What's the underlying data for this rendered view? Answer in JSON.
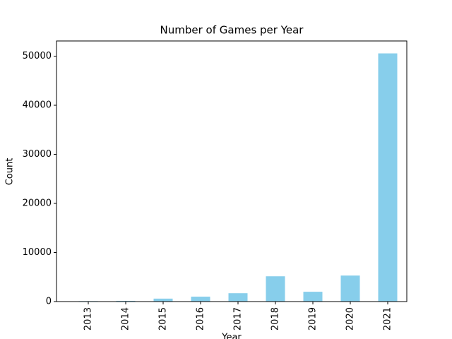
{
  "chart_data": {
    "type": "bar",
    "title": "Number of Games per Year",
    "xlabel": "Year",
    "ylabel": "Count",
    "categories": [
      "2013",
      "2014",
      "2015",
      "2016",
      "2017",
      "2018",
      "2019",
      "2020",
      "2021"
    ],
    "values": [
      100,
      150,
      600,
      1000,
      1700,
      5150,
      2000,
      5300,
      50570
    ],
    "color": "#87ceeb",
    "ylim": [
      0,
      53100
    ],
    "yticks": [
      0,
      10000,
      20000,
      30000,
      40000,
      50000
    ],
    "grid": false
  }
}
